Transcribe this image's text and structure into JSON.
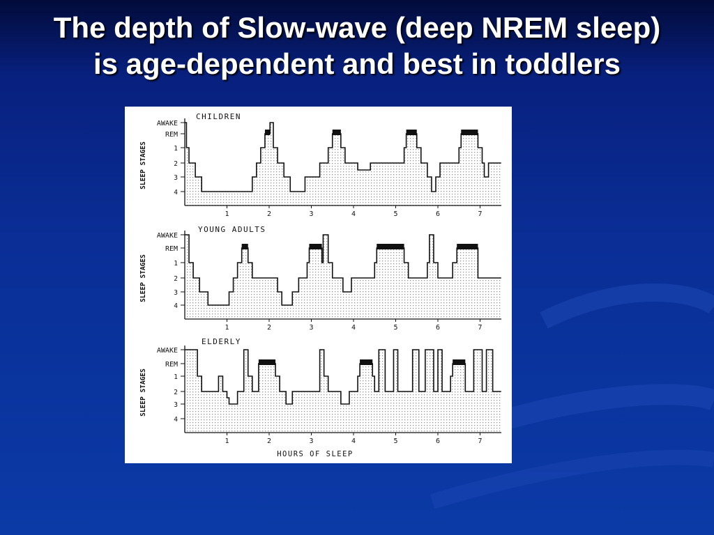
{
  "slide": {
    "title": "The depth of Slow-wave (deep NREM sleep) is age-dependent and best in toddlers"
  },
  "colors": {
    "background_top": "#020b3a",
    "background_bottom": "#0b3aa6",
    "title_text": "#ffffff",
    "figure_background": "#ffffff",
    "trace": "#111111",
    "rem_bar": "#111111"
  },
  "chart_data": [
    {
      "type": "line",
      "title": "CHILDREN",
      "ylabel": "SLEEP STAGES",
      "xlabel": "",
      "stage_labels": [
        "AWAKE",
        "REM",
        "1",
        "2",
        "3",
        "4"
      ],
      "x_ticks": [
        "1",
        "2",
        "3",
        "4",
        "5",
        "6",
        "7"
      ],
      "xlim": [
        0,
        7.5
      ],
      "y_encoding": "0=AWAKE, 0.6=REM, 1, 2, 3, 4 = NREM stages",
      "shading": "dotted fill under trace",
      "hypnogram": [
        [
          0,
          0
        ],
        [
          0.04,
          1
        ],
        [
          0.1,
          2
        ],
        [
          0.25,
          3
        ],
        [
          0.4,
          4
        ],
        [
          1.6,
          3
        ],
        [
          1.7,
          2
        ],
        [
          1.8,
          1
        ],
        [
          1.9,
          0.6
        ],
        [
          2.02,
          0
        ],
        [
          2.1,
          1
        ],
        [
          2.2,
          2
        ],
        [
          2.35,
          3
        ],
        [
          2.5,
          4
        ],
        [
          2.85,
          3
        ],
        [
          3.2,
          2
        ],
        [
          3.4,
          1
        ],
        [
          3.5,
          0.6
        ],
        [
          3.7,
          1
        ],
        [
          3.8,
          2
        ],
        [
          4.05,
          2
        ],
        [
          4.1,
          2.5
        ],
        [
          4.4,
          2
        ],
        [
          5.2,
          1
        ],
        [
          5.25,
          0.6
        ],
        [
          5.5,
          1
        ],
        [
          5.6,
          2
        ],
        [
          5.75,
          3
        ],
        [
          5.85,
          4
        ],
        [
          5.95,
          3
        ],
        [
          6.05,
          2
        ],
        [
          6.5,
          1
        ],
        [
          6.55,
          0.6
        ],
        [
          6.95,
          1
        ],
        [
          7.05,
          2
        ],
        [
          7.1,
          3
        ],
        [
          7.2,
          2
        ],
        [
          7.5,
          2
        ]
      ],
      "rem_periods": [
        [
          1.9,
          2.02
        ],
        [
          3.5,
          3.7
        ],
        [
          5.25,
          5.5
        ],
        [
          6.55,
          6.95
        ]
      ]
    },
    {
      "type": "line",
      "title": "YOUNG ADULTS",
      "ylabel": "SLEEP STAGES",
      "xlabel": "",
      "stage_labels": [
        "AWAKE",
        "REM",
        "1",
        "2",
        "3",
        "4"
      ],
      "x_ticks": [
        "1",
        "2",
        "3",
        "4",
        "5",
        "6",
        "7"
      ],
      "xlim": [
        0,
        7.5
      ],
      "y_encoding": "0=AWAKE, 0.6=REM, 1, 2, 3, 4 = NREM stages",
      "shading": "dotted fill under trace",
      "hypnogram": [
        [
          0,
          0
        ],
        [
          0.1,
          1
        ],
        [
          0.2,
          2
        ],
        [
          0.35,
          3
        ],
        [
          0.55,
          4
        ],
        [
          1.05,
          3
        ],
        [
          1.15,
          2
        ],
        [
          1.25,
          1
        ],
        [
          1.35,
          0.6
        ],
        [
          1.5,
          1
        ],
        [
          1.6,
          2
        ],
        [
          2.2,
          3
        ],
        [
          2.3,
          4
        ],
        [
          2.55,
          3
        ],
        [
          2.7,
          2
        ],
        [
          2.9,
          1
        ],
        [
          2.95,
          0.6
        ],
        [
          3.25,
          1
        ],
        [
          3.28,
          0
        ],
        [
          3.4,
          1
        ],
        [
          3.5,
          2
        ],
        [
          3.75,
          3
        ],
        [
          3.95,
          2
        ],
        [
          4.5,
          1
        ],
        [
          4.55,
          0.6
        ],
        [
          5.2,
          1
        ],
        [
          5.3,
          2
        ],
        [
          5.75,
          1
        ],
        [
          5.8,
          0
        ],
        [
          5.9,
          1
        ],
        [
          6.0,
          2
        ],
        [
          6.35,
          1
        ],
        [
          6.45,
          0.6
        ],
        [
          6.95,
          2
        ],
        [
          7.5,
          2
        ]
      ],
      "rem_periods": [
        [
          1.35,
          1.5
        ],
        [
          2.95,
          3.25
        ],
        [
          4.55,
          5.2
        ],
        [
          6.45,
          6.95
        ]
      ]
    },
    {
      "type": "line",
      "title": "ELDERLY",
      "ylabel": "SLEEP STAGES",
      "xlabel": "HOURS OF SLEEP",
      "stage_labels": [
        "AWAKE",
        "REM",
        "1",
        "2",
        "3",
        "4"
      ],
      "x_ticks": [
        "1",
        "2",
        "3",
        "4",
        "5",
        "6",
        "7"
      ],
      "xlim": [
        0,
        7.5
      ],
      "y_encoding": "0=AWAKE, 0.6=REM, 1, 2, 3, 4 = NREM stages",
      "shading": "dotted fill under trace",
      "hypnogram": [
        [
          0,
          0
        ],
        [
          0.3,
          1
        ],
        [
          0.4,
          2
        ],
        [
          0.8,
          1
        ],
        [
          0.9,
          2
        ],
        [
          1.0,
          2.5
        ],
        [
          1.05,
          3
        ],
        [
          1.25,
          2
        ],
        [
          1.4,
          0
        ],
        [
          1.5,
          1
        ],
        [
          1.6,
          2
        ],
        [
          1.75,
          0.6
        ],
        [
          2.15,
          1
        ],
        [
          2.25,
          2
        ],
        [
          2.4,
          3
        ],
        [
          2.55,
          2
        ],
        [
          3.2,
          0
        ],
        [
          3.3,
          1
        ],
        [
          3.4,
          2
        ],
        [
          3.7,
          3
        ],
        [
          3.9,
          2
        ],
        [
          4.1,
          1
        ],
        [
          4.15,
          0.6
        ],
        [
          4.45,
          1
        ],
        [
          4.5,
          2
        ],
        [
          4.6,
          0
        ],
        [
          4.75,
          2
        ],
        [
          4.95,
          0
        ],
        [
          5.05,
          2
        ],
        [
          5.4,
          0
        ],
        [
          5.55,
          2
        ],
        [
          5.7,
          0
        ],
        [
          5.9,
          2
        ],
        [
          6.0,
          0
        ],
        [
          6.1,
          2
        ],
        [
          6.3,
          1
        ],
        [
          6.35,
          0.6
        ],
        [
          6.65,
          2
        ],
        [
          6.85,
          0
        ],
        [
          7.05,
          2
        ],
        [
          7.15,
          0
        ],
        [
          7.3,
          2
        ],
        [
          7.5,
          2
        ]
      ],
      "rem_periods": [
        [
          1.75,
          2.15
        ],
        [
          4.15,
          4.45
        ],
        [
          6.35,
          6.65
        ]
      ]
    }
  ]
}
